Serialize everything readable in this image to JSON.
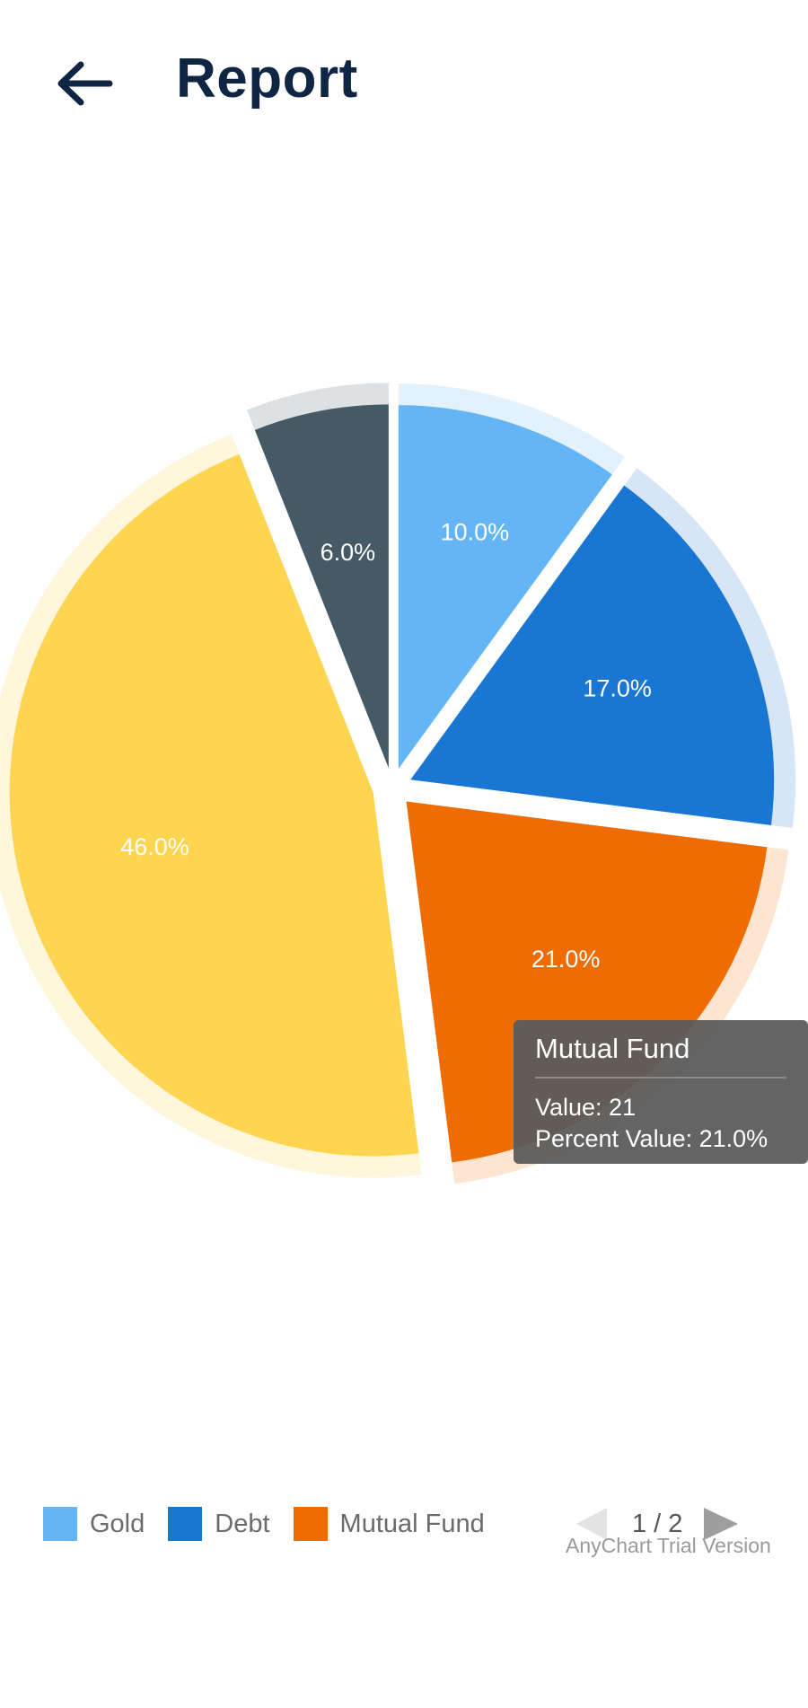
{
  "header": {
    "title": "Report",
    "back_icon": "arrow-left-icon"
  },
  "colors": {
    "title": "#0f2544",
    "label": "#ffffff",
    "tooltip_bg": "#5a5a5a"
  },
  "chart_data": {
    "type": "pie",
    "slices": [
      {
        "name": "Gold",
        "value": 10,
        "label": "10.0%",
        "color": "#64b5f6",
        "halo": "#e3f1fd"
      },
      {
        "name": "Debt",
        "value": 17,
        "label": "17.0%",
        "color": "#1976d2",
        "halo": "#d6e6f7"
      },
      {
        "name": "Mutual Fund",
        "value": 21,
        "label": "21.0%",
        "color": "#ef6c00",
        "halo": "#fde5d2"
      },
      {
        "name": "",
        "value": 46,
        "label": "46.0%",
        "color": "#fdd551",
        "halo": "#fff6dc"
      },
      {
        "name": "",
        "value": 6,
        "label": "6.0%",
        "color": "#455a64",
        "halo": "#dde1e3"
      }
    ],
    "exploded": true,
    "tooltip": {
      "title": "Mutual Fund",
      "lines": [
        "Value: 21",
        "Percent Value: 21.0%"
      ]
    },
    "legend": {
      "placement": "bottom",
      "items": [
        {
          "label": "Gold",
          "color": "#64b5f6"
        },
        {
          "label": "Debt",
          "color": "#1976d2"
        },
        {
          "label": "Mutual Fund",
          "color": "#ef6c00"
        }
      ],
      "pager": "1 / 2"
    },
    "watermark": "AnyChart Trial Version"
  }
}
